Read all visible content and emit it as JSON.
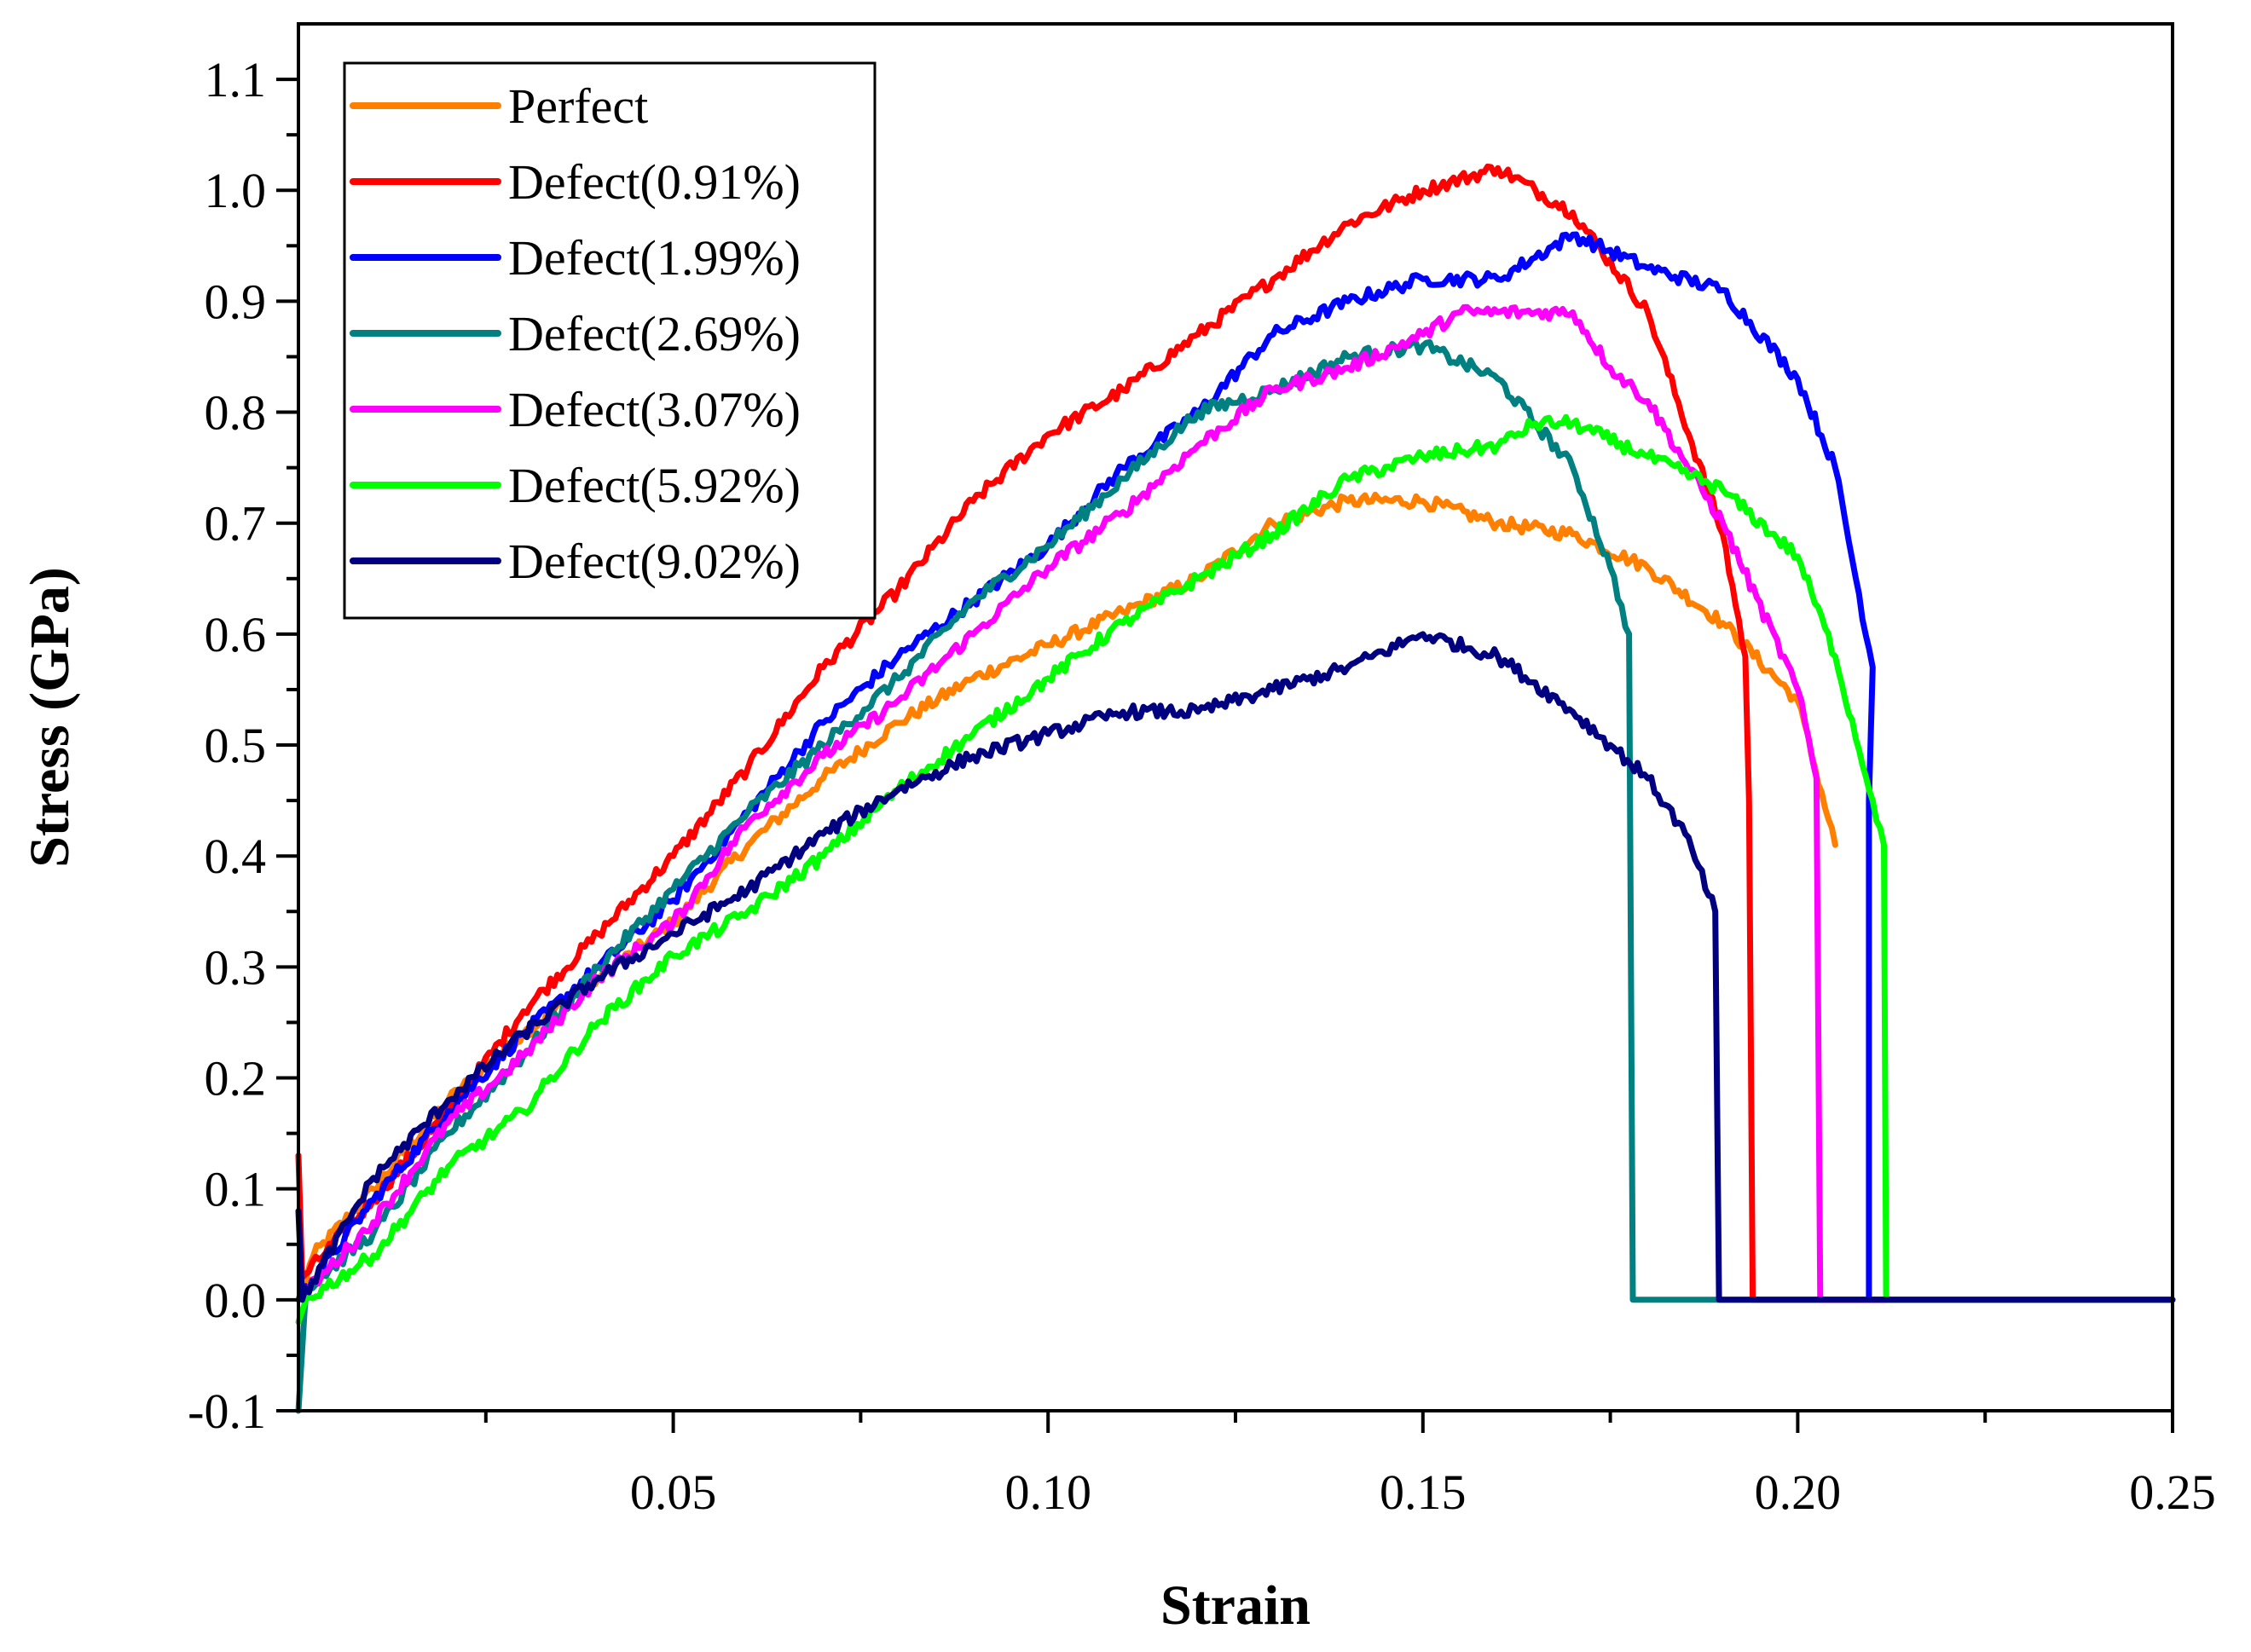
{
  "chart_data": {
    "type": "line",
    "title": "",
    "xlabel": "Strain",
    "ylabel": "Stress (GPa)",
    "xlim": [
      0,
      0.25
    ],
    "ylim": [
      -0.1,
      1.15
    ],
    "x_ticks": [
      0.05,
      0.1,
      0.15,
      0.2,
      0.25
    ],
    "x_tick_labels": [
      "0.05",
      "0.10",
      "0.15",
      "0.20",
      "0.25"
    ],
    "y_ticks": [
      -0.1,
      0.0,
      0.1,
      0.2,
      0.3,
      0.4,
      0.5,
      0.6,
      0.7,
      0.8,
      0.9,
      1.0,
      1.1
    ],
    "y_tick_labels": [
      "-0.1",
      "0.0",
      "0.1",
      "0.2",
      "0.3",
      "0.4",
      "0.5",
      "0.6",
      "0.7",
      "0.8",
      "0.9",
      "1.0",
      "1.1"
    ],
    "grid": false,
    "legend_position": "top-left",
    "series": [
      {
        "name": "Perfect",
        "color": "#FF8000",
        "points": [
          [
            0.0,
            0.0
          ],
          [
            0.002,
            0.04
          ],
          [
            0.01,
            0.1
          ],
          [
            0.02,
            0.18
          ],
          [
            0.03,
            0.24
          ],
          [
            0.04,
            0.29
          ],
          [
            0.05,
            0.34
          ],
          [
            0.06,
            0.41
          ],
          [
            0.07,
            0.47
          ],
          [
            0.08,
            0.52
          ],
          [
            0.09,
            0.56
          ],
          [
            0.1,
            0.59
          ],
          [
            0.11,
            0.62
          ],
          [
            0.12,
            0.65
          ],
          [
            0.13,
            0.7
          ],
          [
            0.14,
            0.72
          ],
          [
            0.15,
            0.72
          ],
          [
            0.16,
            0.7
          ],
          [
            0.17,
            0.69
          ],
          [
            0.18,
            0.66
          ],
          [
            0.19,
            0.61
          ],
          [
            0.2,
            0.54
          ],
          [
            0.205,
            0.41
          ]
        ]
      },
      {
        "name": "Defect(0.91%)",
        "color": "#FF0000",
        "points": [
          [
            0.0,
            0.13
          ],
          [
            0.0005,
            0.02
          ],
          [
            0.01,
            0.09
          ],
          [
            0.02,
            0.17
          ],
          [
            0.03,
            0.26
          ],
          [
            0.04,
            0.33
          ],
          [
            0.05,
            0.4
          ],
          [
            0.06,
            0.48
          ],
          [
            0.07,
            0.57
          ],
          [
            0.08,
            0.64
          ],
          [
            0.09,
            0.72
          ],
          [
            0.1,
            0.78
          ],
          [
            0.11,
            0.82
          ],
          [
            0.12,
            0.87
          ],
          [
            0.13,
            0.92
          ],
          [
            0.14,
            0.97
          ],
          [
            0.15,
            1.0
          ],
          [
            0.16,
            1.02
          ],
          [
            0.17,
            0.98
          ],
          [
            0.18,
            0.89
          ],
          [
            0.19,
            0.69
          ],
          [
            0.193,
            0.58
          ],
          [
            0.1935,
            0.45
          ],
          [
            0.194,
            0.0
          ],
          [
            0.25,
            0.0
          ]
        ]
      },
      {
        "name": "Defect(1.99%)",
        "color": "#0000FF",
        "points": [
          [
            0.0,
            0.0
          ],
          [
            0.01,
            0.09
          ],
          [
            0.02,
            0.17
          ],
          [
            0.03,
            0.24
          ],
          [
            0.04,
            0.3
          ],
          [
            0.05,
            0.36
          ],
          [
            0.06,
            0.44
          ],
          [
            0.07,
            0.52
          ],
          [
            0.08,
            0.58
          ],
          [
            0.09,
            0.63
          ],
          [
            0.1,
            0.68
          ],
          [
            0.11,
            0.75
          ],
          [
            0.12,
            0.8
          ],
          [
            0.13,
            0.87
          ],
          [
            0.14,
            0.9
          ],
          [
            0.15,
            0.92
          ],
          [
            0.16,
            0.92
          ],
          [
            0.17,
            0.96
          ],
          [
            0.18,
            0.93
          ],
          [
            0.19,
            0.91
          ],
          [
            0.2,
            0.83
          ],
          [
            0.205,
            0.75
          ],
          [
            0.21,
            0.57
          ],
          [
            0.2095,
            0.45
          ],
          [
            0.2095,
            0.0
          ],
          [
            0.25,
            0.0
          ]
        ]
      },
      {
        "name": "Defect(2.69%)",
        "color": "#008080",
        "points": [
          [
            0.0,
            -0.1
          ],
          [
            0.001,
            0.01
          ],
          [
            0.01,
            0.06
          ],
          [
            0.02,
            0.15
          ],
          [
            0.03,
            0.22
          ],
          [
            0.04,
            0.3
          ],
          [
            0.05,
            0.37
          ],
          [
            0.06,
            0.44
          ],
          [
            0.07,
            0.5
          ],
          [
            0.08,
            0.56
          ],
          [
            0.09,
            0.63
          ],
          [
            0.1,
            0.68
          ],
          [
            0.11,
            0.74
          ],
          [
            0.12,
            0.8
          ],
          [
            0.13,
            0.82
          ],
          [
            0.14,
            0.85
          ],
          [
            0.15,
            0.86
          ],
          [
            0.16,
            0.83
          ],
          [
            0.17,
            0.75
          ],
          [
            0.175,
            0.66
          ],
          [
            0.1775,
            0.6
          ],
          [
            0.178,
            0.0
          ],
          [
            0.25,
            0.0
          ]
        ]
      },
      {
        "name": "Defect(3.07%)",
        "color": "#FF00FF",
        "points": [
          [
            0.0,
            0.0
          ],
          [
            0.01,
            0.07
          ],
          [
            0.02,
            0.16
          ],
          [
            0.03,
            0.22
          ],
          [
            0.04,
            0.29
          ],
          [
            0.05,
            0.34
          ],
          [
            0.06,
            0.43
          ],
          [
            0.07,
            0.49
          ],
          [
            0.08,
            0.54
          ],
          [
            0.09,
            0.6
          ],
          [
            0.1,
            0.66
          ],
          [
            0.11,
            0.71
          ],
          [
            0.12,
            0.77
          ],
          [
            0.13,
            0.82
          ],
          [
            0.14,
            0.84
          ],
          [
            0.15,
            0.87
          ],
          [
            0.155,
            0.89
          ],
          [
            0.16,
            0.89
          ],
          [
            0.165,
            0.89
          ],
          [
            0.17,
            0.89
          ],
          [
            0.175,
            0.84
          ],
          [
            0.18,
            0.81
          ],
          [
            0.19,
            0.7
          ],
          [
            0.2,
            0.55
          ],
          [
            0.2025,
            0.47
          ],
          [
            0.203,
            0.0
          ],
          [
            0.25,
            0.0
          ]
        ]
      },
      {
        "name": "Defect(5.92%)",
        "color": "#00FF00",
        "points": [
          [
            0.0,
            -0.02
          ],
          [
            0.001,
            0.0
          ],
          [
            0.01,
            0.04
          ],
          [
            0.02,
            0.12
          ],
          [
            0.03,
            0.17
          ],
          [
            0.04,
            0.25
          ],
          [
            0.05,
            0.31
          ],
          [
            0.06,
            0.35
          ],
          [
            0.07,
            0.4
          ],
          [
            0.08,
            0.46
          ],
          [
            0.09,
            0.51
          ],
          [
            0.1,
            0.56
          ],
          [
            0.11,
            0.61
          ],
          [
            0.12,
            0.65
          ],
          [
            0.13,
            0.69
          ],
          [
            0.14,
            0.74
          ],
          [
            0.15,
            0.76
          ],
          [
            0.16,
            0.77
          ],
          [
            0.165,
            0.79
          ],
          [
            0.17,
            0.79
          ],
          [
            0.18,
            0.76
          ],
          [
            0.19,
            0.73
          ],
          [
            0.2,
            0.67
          ],
          [
            0.205,
            0.58
          ],
          [
            0.21,
            0.45
          ],
          [
            0.2115,
            0.41
          ],
          [
            0.2118,
            0.0
          ],
          [
            0.25,
            0.0
          ]
        ]
      },
      {
        "name": "Defect(9.02%)",
        "color": "#000080",
        "points": [
          [
            0.0,
            0.08
          ],
          [
            0.0005,
            0.0
          ],
          [
            0.01,
            0.11
          ],
          [
            0.02,
            0.18
          ],
          [
            0.03,
            0.24
          ],
          [
            0.04,
            0.29
          ],
          [
            0.05,
            0.33
          ],
          [
            0.06,
            0.37
          ],
          [
            0.07,
            0.42
          ],
          [
            0.08,
            0.46
          ],
          [
            0.09,
            0.49
          ],
          [
            0.1,
            0.51
          ],
          [
            0.11,
            0.53
          ],
          [
            0.12,
            0.53
          ],
          [
            0.13,
            0.55
          ],
          [
            0.14,
            0.57
          ],
          [
            0.15,
            0.6
          ],
          [
            0.16,
            0.58
          ],
          [
            0.17,
            0.53
          ],
          [
            0.18,
            0.47
          ],
          [
            0.185,
            0.42
          ],
          [
            0.189,
            0.35
          ],
          [
            0.1895,
            0.0
          ],
          [
            0.25,
            0.0
          ]
        ]
      }
    ]
  }
}
